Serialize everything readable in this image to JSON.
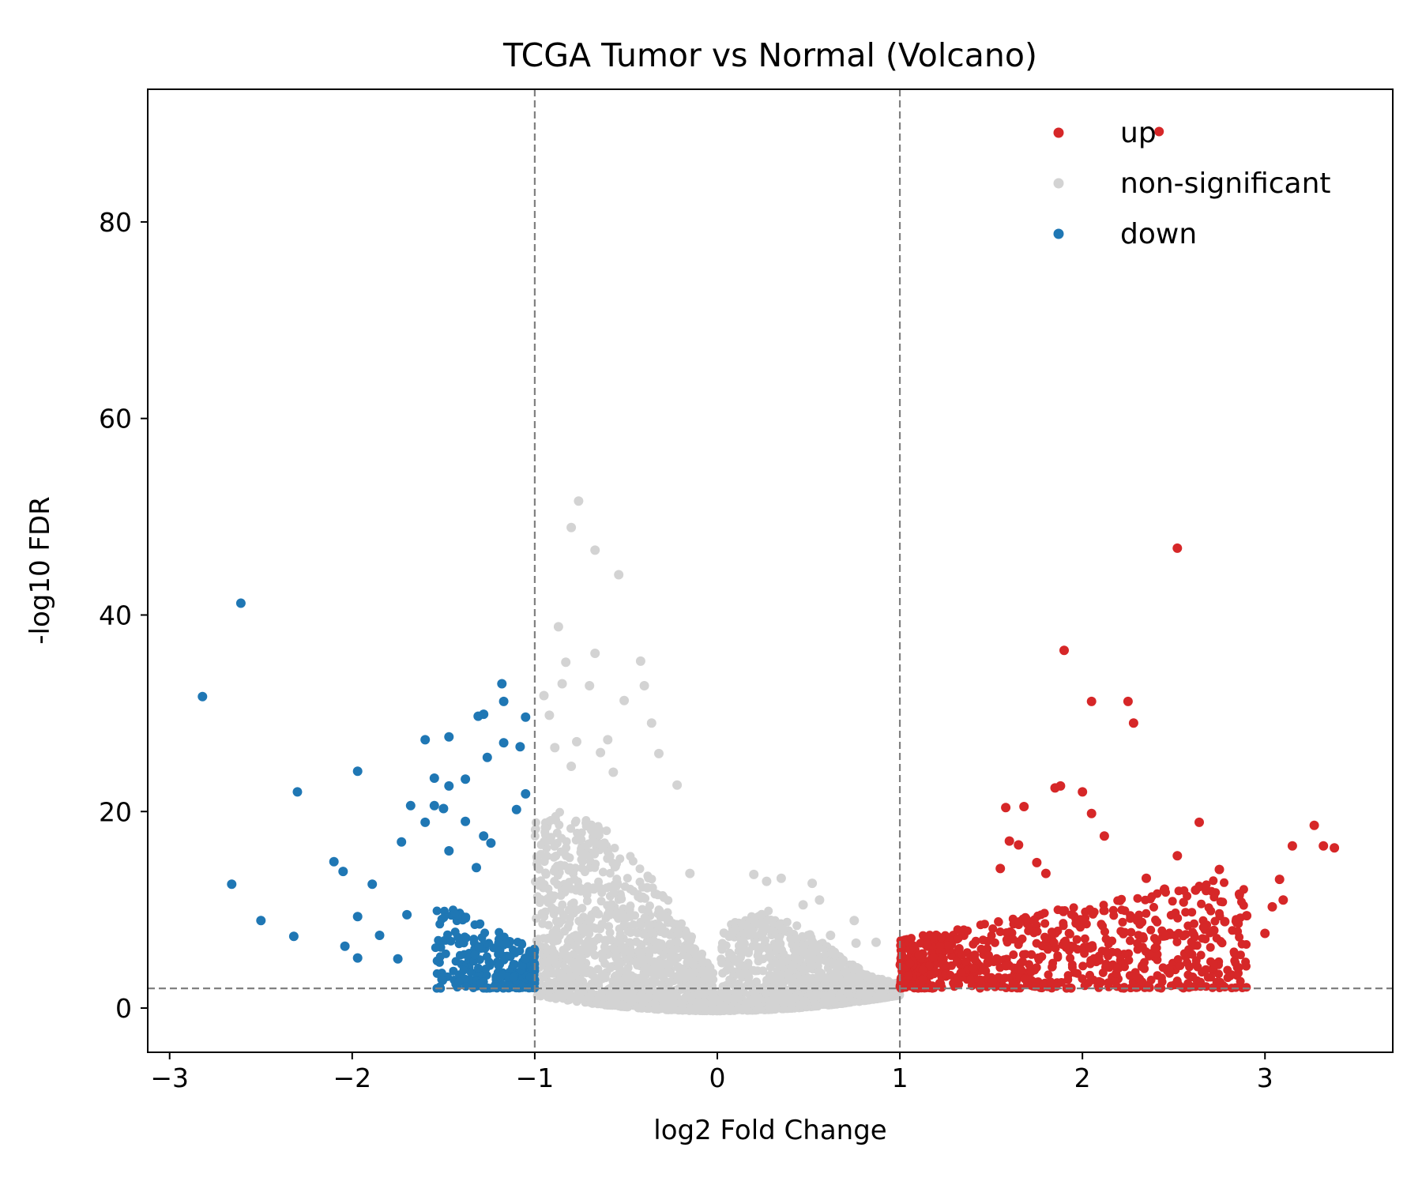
{
  "chart_data": {
    "type": "scatter",
    "title": "TCGA Tumor vs Normal (Volcano)",
    "xlabel": "log2 Fold Change",
    "ylabel": "-log10 FDR",
    "xlim": [
      -3.12,
      3.7
    ],
    "ylim": [
      -4.5,
      93.5
    ],
    "xticks": [
      -3,
      -2,
      -1,
      0,
      1,
      2,
      3
    ],
    "xtick_labels": [
      "−3",
      "−2",
      "−1",
      "0",
      "1",
      "2",
      "3"
    ],
    "yticks": [
      0,
      20,
      40,
      60,
      80
    ],
    "ytick_labels": [
      "0",
      "20",
      "40",
      "60",
      "80"
    ],
    "thresholds": {
      "log2fc": [
        -1,
        1
      ],
      "neg_log10_fdr": 2
    },
    "grid": false,
    "legend_position": "top-right",
    "series": [
      {
        "name": "up",
        "color": "#d62728",
        "points": [
          [
            2.42,
            89.2
          ],
          [
            2.52,
            46.8
          ],
          [
            1.9,
            36.4
          ],
          [
            2.05,
            31.2
          ],
          [
            2.25,
            31.2
          ],
          [
            2.28,
            29.0
          ],
          [
            1.85,
            22.4
          ],
          [
            1.88,
            22.6
          ],
          [
            2.0,
            22.0
          ],
          [
            2.05,
            19.8
          ],
          [
            2.12,
            17.5
          ],
          [
            2.64,
            18.9
          ],
          [
            3.27,
            18.6
          ],
          [
            3.15,
            16.5
          ],
          [
            3.32,
            16.5
          ],
          [
            3.38,
            16.3
          ],
          [
            2.52,
            15.5
          ],
          [
            1.58,
            20.4
          ],
          [
            1.68,
            20.5
          ],
          [
            1.6,
            17.0
          ],
          [
            1.65,
            16.6
          ],
          [
            1.75,
            14.8
          ],
          [
            1.8,
            13.7
          ],
          [
            1.55,
            14.2
          ],
          [
            2.35,
            13.2
          ],
          [
            2.45,
            12.1
          ],
          [
            2.62,
            12.0
          ],
          [
            2.75,
            14.1
          ],
          [
            2.86,
            11.6
          ],
          [
            3.08,
            13.1
          ],
          [
            3.1,
            11.0
          ],
          [
            3.04,
            10.3
          ],
          [
            2.9,
            9.4
          ],
          [
            2.78,
            8.8
          ],
          [
            3.0,
            7.6
          ],
          [
            2.72,
            7.9
          ]
        ],
        "cluster": {
          "x_range": [
            1.0,
            2.9
          ],
          "y_range": [
            2.0,
            11.0
          ],
          "count": 760
        }
      },
      {
        "name": "non-significant",
        "color": "#d3d3d3",
        "points": [
          [
            -0.76,
            51.6
          ],
          [
            -0.8,
            48.9
          ],
          [
            -0.67,
            46.6
          ],
          [
            -0.54,
            44.1
          ],
          [
            -0.87,
            38.8
          ],
          [
            -0.83,
            35.2
          ],
          [
            -0.67,
            36.1
          ],
          [
            -0.42,
            35.3
          ],
          [
            -0.4,
            32.8
          ],
          [
            -0.85,
            33.0
          ],
          [
            -0.7,
            32.8
          ],
          [
            -0.51,
            31.3
          ],
          [
            -0.95,
            31.8
          ],
          [
            -0.92,
            29.8
          ],
          [
            -0.36,
            29.0
          ],
          [
            -0.77,
            27.1
          ],
          [
            -0.6,
            27.3
          ],
          [
            -0.89,
            26.5
          ],
          [
            -0.64,
            26.0
          ],
          [
            -0.32,
            25.9
          ],
          [
            -0.8,
            24.6
          ],
          [
            -0.57,
            24.0
          ],
          [
            -0.22,
            22.7
          ],
          [
            -0.15,
            13.7
          ],
          [
            0.2,
            13.6
          ],
          [
            0.27,
            12.9
          ],
          [
            0.35,
            13.2
          ],
          [
            0.52,
            12.7
          ],
          [
            0.56,
            11.0
          ],
          [
            0.47,
            10.5
          ],
          [
            0.75,
            8.9
          ],
          [
            0.62,
            7.4
          ],
          [
            0.76,
            6.6
          ],
          [
            0.87,
            6.7
          ]
        ],
        "cluster": {
          "x_range": [
            -1.0,
            1.0
          ],
          "y_range": [
            -0.3,
            20.0
          ],
          "count": 2400
        }
      },
      {
        "name": "down",
        "color": "#1f77b4",
        "points": [
          [
            -2.61,
            41.2
          ],
          [
            -2.82,
            31.7
          ],
          [
            -2.3,
            22.0
          ],
          [
            -1.97,
            24.1
          ],
          [
            -2.66,
            12.6
          ],
          [
            -2.5,
            8.9
          ],
          [
            -2.32,
            7.3
          ],
          [
            -2.04,
            6.3
          ],
          [
            -1.97,
            5.1
          ],
          [
            -1.97,
            9.3
          ],
          [
            -1.89,
            12.6
          ],
          [
            -2.1,
            14.9
          ],
          [
            -2.05,
            13.9
          ],
          [
            -1.85,
            7.4
          ],
          [
            -1.75,
            5.0
          ],
          [
            -1.7,
            9.5
          ],
          [
            -1.73,
            16.9
          ],
          [
            -1.68,
            20.6
          ],
          [
            -1.6,
            18.9
          ],
          [
            -1.55,
            20.6
          ],
          [
            -1.5,
            20.3
          ],
          [
            -1.47,
            27.6
          ],
          [
            -1.6,
            27.3
          ],
          [
            -1.55,
            23.4
          ],
          [
            -1.47,
            22.6
          ],
          [
            -1.47,
            16.0
          ],
          [
            -1.38,
            23.3
          ],
          [
            -1.38,
            19.0
          ],
          [
            -1.31,
            29.7
          ],
          [
            -1.28,
            29.9
          ],
          [
            -1.26,
            25.5
          ],
          [
            -1.18,
            33.0
          ],
          [
            -1.17,
            31.2
          ],
          [
            -1.17,
            27.0
          ],
          [
            -1.08,
            26.6
          ],
          [
            -1.05,
            29.6
          ],
          [
            -1.28,
            17.5
          ],
          [
            -1.24,
            16.8
          ],
          [
            -1.32,
            14.3
          ],
          [
            -1.05,
            21.8
          ],
          [
            -1.1,
            20.2
          ]
        ],
        "cluster": {
          "x_range": [
            -1.5,
            -1.0
          ],
          "y_range": [
            2.0,
            11.0
          ],
          "count": 260
        }
      }
    ]
  }
}
